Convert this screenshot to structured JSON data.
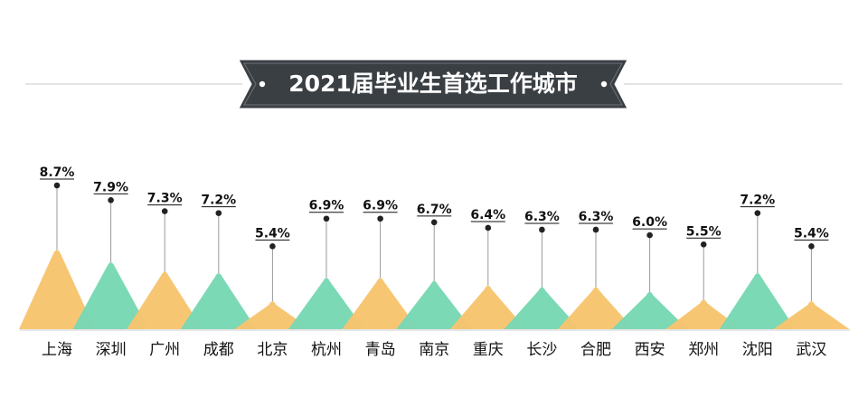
{
  "chart_data": {
    "type": "bar",
    "title": "2021届毕业生首选工作城市",
    "categories": [
      "上海",
      "深圳",
      "广州",
      "成都",
      "北京",
      "杭州",
      "青岛",
      "南京",
      "重庆",
      "长沙",
      "合肥",
      "西安",
      "郑州",
      "沈阳",
      "武汉"
    ],
    "values": [
      8.7,
      7.9,
      7.3,
      7.2,
      5.4,
      6.9,
      6.9,
      6.7,
      6.4,
      6.3,
      6.3,
      6.0,
      5.5,
      7.2,
      5.4
    ],
    "value_labels": [
      "8.7%",
      "7.9%",
      "7.3%",
      "7.2%",
      "5.4%",
      "6.9%",
      "6.9%",
      "6.7%",
      "6.4%",
      "6.3%",
      "6.3%",
      "6.0%",
      "5.5%",
      "7.2%",
      "5.4%"
    ],
    "unit": "%",
    "colors": {
      "odd": "#F7C46E",
      "even": "#78D8B4",
      "title_bg": "#3A3F44",
      "line": "#999999",
      "dot": "#222222"
    }
  }
}
